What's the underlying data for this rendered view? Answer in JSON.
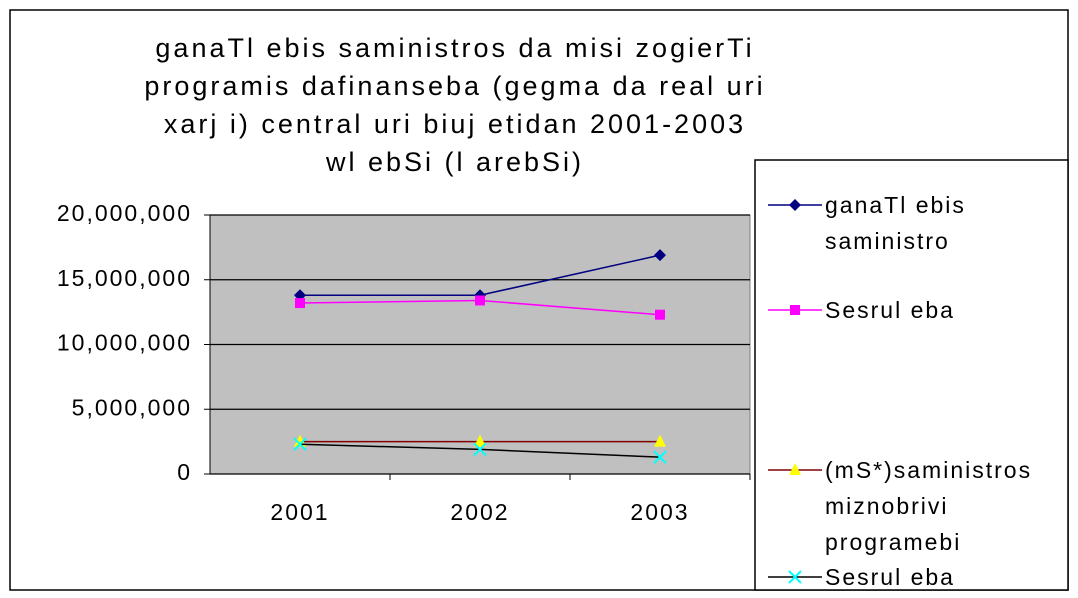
{
  "chart_data": {
    "type": "line",
    "title": [
      "ganaTl ebis saministros da misi zogierTi",
      "programis dafinanseba (gegma da real uri",
      "xarj i) central uri biuj etidan 2001-2003",
      "wl ebSi (l arebSi)"
    ],
    "categories": [
      "2001",
      "2002",
      "2003"
    ],
    "series": [
      {
        "name": "ganaTl ebis saministro",
        "color": "#000080",
        "marker": "diamond",
        "marker_color": "#000080",
        "values": [
          13800000,
          13800000,
          16900000
        ]
      },
      {
        "name": "Sesrul eba",
        "color": "#ff00ff",
        "marker": "square",
        "marker_color": "#ff00ff",
        "values": [
          13200000,
          13400000,
          12300000
        ]
      },
      {
        "name": "(mS*)saministros miznobrivi programebi",
        "color": "#800000",
        "marker": "triangle",
        "marker_color": "#ffff00",
        "values": [
          2500000,
          2500000,
          2500000
        ]
      },
      {
        "name": "Sesrul eba",
        "color": "#000000",
        "marker": "x",
        "marker_color": "#00ffff",
        "values": [
          2300000,
          1900000,
          1300000
        ]
      }
    ],
    "ylim": [
      0,
      20000000
    ],
    "yticks": [
      0,
      {
        "value": 5000000,
        "label": "5,000,000"
      },
      {
        "value": 10000000,
        "label": "10,000,000"
      },
      {
        "value": 15000000,
        "label": "15,000,000"
      },
      {
        "value": 20000000,
        "label": "20,000,000"
      }
    ],
    "grid": true,
    "legend": "right"
  }
}
